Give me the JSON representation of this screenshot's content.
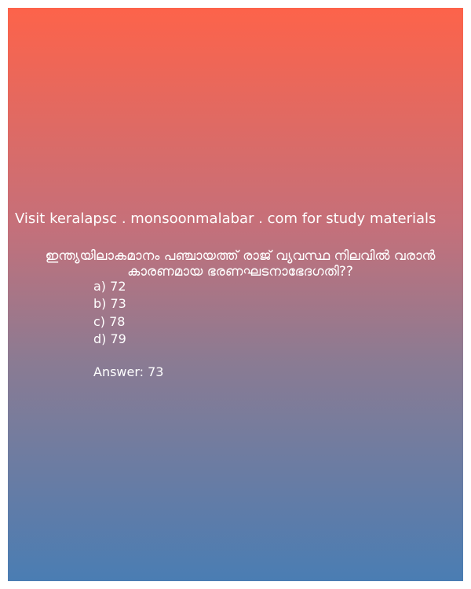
{
  "site_text": "Visit keralapsc . monsoonmalabar . com for study materials",
  "question": "ഇന്ത്യയിലാകമാനം പഞ്ചായത്ത് രാജ് വ്യവസ്ഥ നിലവിൽ വരാൻ കാരണമായ ഭരണഘടനാഭേദഗതി??",
  "options": [
    "a) 72",
    "b) 73",
    "c) 78",
    "d) 79"
  ],
  "answer": "Answer: 73",
  "colors": {
    "gradient_top": "#fd634a",
    "gradient_bottom": "#4a7db3",
    "text": "#ffffff"
  }
}
